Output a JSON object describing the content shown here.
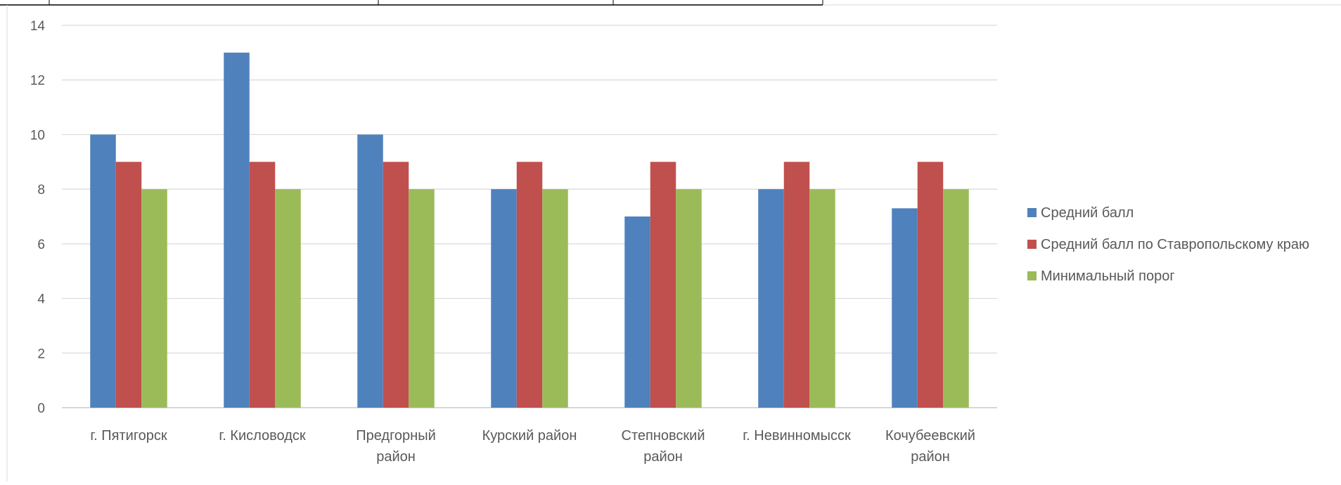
{
  "chart_data": {
    "type": "bar",
    "title": "",
    "xlabel": "",
    "ylabel": "",
    "ylim": [
      0,
      14
    ],
    "yticks": [
      0,
      2,
      4,
      6,
      8,
      10,
      12,
      14
    ],
    "grid": true,
    "legend_position": "right",
    "categories": [
      [
        "г. Пятигорск"
      ],
      [
        "г. Кисловодск"
      ],
      [
        "Предгорный",
        "район"
      ],
      [
        "Курский район"
      ],
      [
        "Степновский",
        "район"
      ],
      [
        "г. Невинномысск"
      ],
      [
        "Кочубеевский",
        "район"
      ]
    ],
    "series": [
      {
        "name": "Средний балл",
        "color": "#4F81BD",
        "values": [
          10,
          13,
          10,
          8,
          7,
          8,
          7.3
        ]
      },
      {
        "name": "Средний балл по Ставропольскому краю",
        "color": "#C0504D",
        "values": [
          9,
          9,
          9,
          9,
          9,
          9,
          9
        ]
      },
      {
        "name": "Минимальный порог",
        "color": "#9BBB59",
        "values": [
          8,
          8,
          8,
          8,
          8,
          8,
          8
        ]
      }
    ]
  }
}
